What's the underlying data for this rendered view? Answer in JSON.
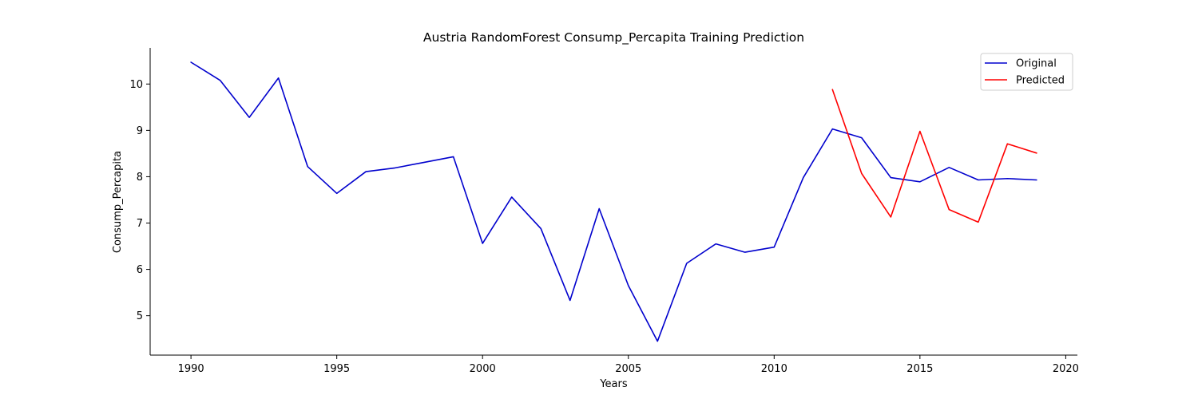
{
  "chart_data": {
    "type": "line",
    "title": "Austria RandomForest Consump_Percapita Training Prediction",
    "xlabel": "Years",
    "ylabel": "Consump_Percapita",
    "xlim": [
      1988.6,
      2020.4
    ],
    "ylim": [
      4.15,
      10.78
    ],
    "xticks": [
      1990,
      1995,
      2000,
      2005,
      2010,
      2015,
      2020
    ],
    "yticks": [
      5,
      6,
      7,
      8,
      9,
      10
    ],
    "grid": false,
    "legend_position": "top-right",
    "series": [
      {
        "name": "Original",
        "color": "#0000cd",
        "x": [
          1990,
          1991,
          1992,
          1993,
          1994,
          1995,
          1996,
          1997,
          1998,
          1999,
          2000,
          2001,
          2002,
          2003,
          2004,
          2005,
          2006,
          2007,
          2008,
          2009,
          2010,
          2011,
          2012,
          2013,
          2014,
          2015,
          2016,
          2017,
          2018,
          2019
        ],
        "y": [
          10.47,
          10.08,
          9.28,
          10.13,
          8.22,
          7.64,
          8.11,
          8.19,
          8.31,
          8.43,
          6.56,
          7.56,
          6.88,
          5.33,
          7.31,
          5.65,
          4.45,
          6.13,
          6.55,
          6.37,
          6.48,
          7.98,
          9.03,
          8.84,
          7.98,
          7.89,
          8.2,
          7.93,
          7.96,
          7.93
        ]
      },
      {
        "name": "Predicted",
        "color": "#ff0000",
        "x": [
          2012,
          2013,
          2014,
          2015,
          2016,
          2017,
          2018,
          2019
        ],
        "y": [
          9.88,
          8.07,
          7.13,
          8.98,
          7.29,
          7.02,
          8.71,
          8.51
        ]
      }
    ]
  }
}
